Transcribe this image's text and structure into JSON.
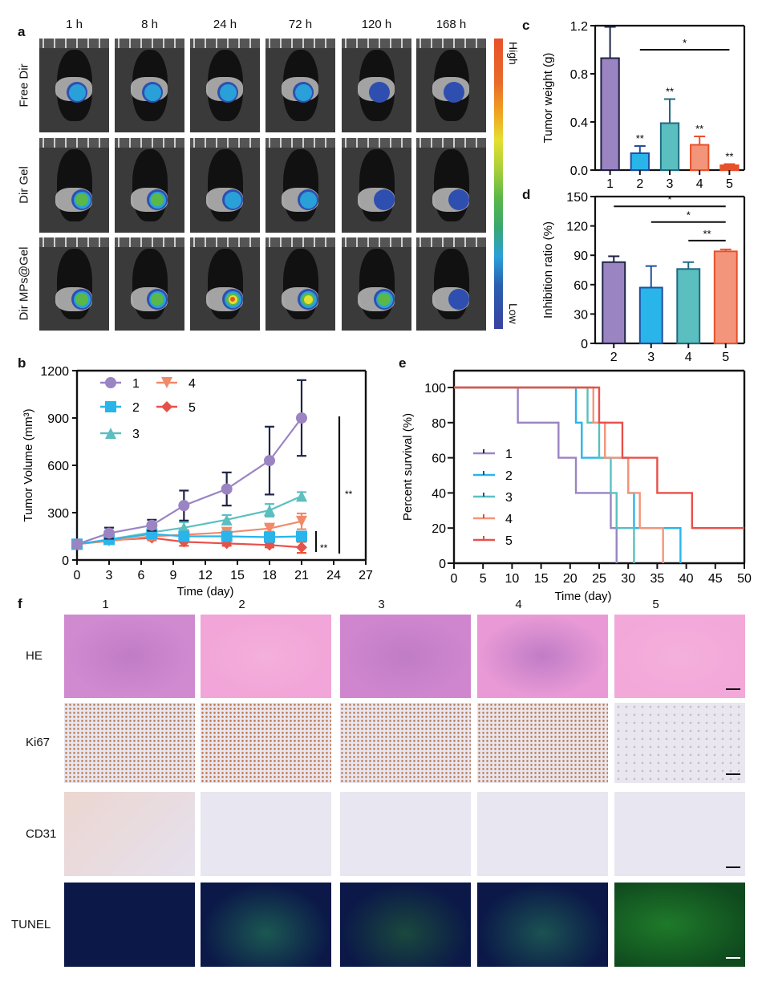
{
  "panel_labels": {
    "a": "a",
    "b": "b",
    "c": "c",
    "d": "d",
    "e": "e",
    "f": "f"
  },
  "panel_a": {
    "time_points": [
      "1 h",
      "8 h",
      "24 h",
      "72 h",
      "120 h",
      "168 h"
    ],
    "groups": [
      "Free Dir",
      "Dir Gel",
      "Dir MPs@Gel"
    ],
    "colorbar": {
      "high_label": "High",
      "low_label": "Low",
      "colors": [
        "#e8512a",
        "#f0a020",
        "#e4e030",
        "#59b848",
        "#2aa0d8",
        "#3a40a0"
      ]
    },
    "signal_intensity": [
      [
        0.45,
        0.45,
        0.4,
        0.3,
        0.08,
        0.08
      ],
      [
        0.55,
        0.5,
        0.45,
        0.45,
        0.25,
        0.15
      ],
      [
        0.55,
        0.55,
        0.95,
        0.8,
        0.55,
        0.25
      ]
    ]
  },
  "chart_data": [
    {
      "id": "b",
      "type": "line",
      "title": "",
      "xlabel": "Time (day)",
      "ylabel": "Tumor Volume (mm³)",
      "xlim": [
        0,
        27
      ],
      "ylim": [
        0,
        1200
      ],
      "xticks": [
        0,
        3,
        6,
        9,
        12,
        15,
        18,
        21,
        24,
        27
      ],
      "yticks": [
        0,
        300,
        600,
        900,
        1200
      ],
      "x": [
        0,
        3,
        7,
        10,
        14,
        18,
        21
      ],
      "series": [
        {
          "name": "1",
          "color": "#9b84c2",
          "marker": "circle",
          "values": [
            100,
            170,
            220,
            345,
            450,
            630,
            900
          ],
          "err": [
            100,
            205,
            255,
            440,
            555,
            845,
            1140
          ]
        },
        {
          "name": "2",
          "color": "#29b5ea",
          "marker": "square",
          "values": [
            100,
            130,
            165,
            150,
            150,
            145,
            150
          ],
          "err": [
            100,
            150,
            185,
            170,
            170,
            165,
            170
          ]
        },
        {
          "name": "3",
          "color": "#5bbfc0",
          "marker": "triangle-up",
          "values": [
            100,
            130,
            175,
            205,
            255,
            315,
            405
          ],
          "err": [
            100,
            150,
            195,
            240,
            285,
            355,
            430
          ]
        },
        {
          "name": "4",
          "color": "#f08a6a",
          "marker": "triangle-down",
          "values": [
            100,
            120,
            150,
            160,
            175,
            200,
            245
          ],
          "err": [
            100,
            135,
            170,
            180,
            195,
            220,
            295
          ]
        },
        {
          "name": "5",
          "color": "#e8504a",
          "marker": "diamond",
          "values": [
            100,
            125,
            140,
            115,
            105,
            95,
            80
          ],
          "err": [
            100,
            140,
            155,
            140,
            120,
            110,
            115
          ]
        }
      ],
      "legend": {
        "placement": "top-left",
        "entries": [
          "1",
          "2",
          "3",
          "4",
          "5"
        ]
      },
      "annotations": [
        {
          "text": "**",
          "from": "2",
          "to": "5"
        },
        {
          "text": "**",
          "from": "1",
          "to": "5"
        }
      ]
    },
    {
      "id": "c",
      "type": "bar",
      "xlabel": "",
      "ylabel": "Tumor weight (g)",
      "categories": [
        "1",
        "2",
        "3",
        "4",
        "5"
      ],
      "values": [
        0.93,
        0.14,
        0.39,
        0.21,
        0.04
      ],
      "err": [
        1.19,
        0.2,
        0.59,
        0.28,
        0.05
      ],
      "colors": [
        "#9b84c2",
        "#29b5ea",
        "#5bbfc0",
        "#f3957a",
        "#e8502a"
      ],
      "edge_colors": [
        "#1f2447",
        "#1f4fa0",
        "#1f6a80",
        "#e8502a",
        "#e8502a"
      ],
      "ylim": [
        0,
        1.2
      ],
      "yticks": [
        0.0,
        0.4,
        0.8,
        1.2
      ],
      "ytick_labels": [
        "0.0",
        "0.4",
        "0.8",
        "1.2"
      ],
      "sig_labels": [
        "",
        "**",
        "**",
        "**",
        "**"
      ],
      "brackets": [
        {
          "from": "2",
          "to": "5",
          "text": "*",
          "level": 1.0
        }
      ]
    },
    {
      "id": "d",
      "type": "bar",
      "xlabel": "",
      "ylabel": "Inhibition ratio (%)",
      "categories": [
        "2",
        "3",
        "4",
        "5"
      ],
      "values": [
        83,
        57,
        76,
        94
      ],
      "err": [
        89,
        79,
        83,
        96
      ],
      "colors": [
        "#9b84c2",
        "#29b5ea",
        "#5bbfc0",
        "#f3957a"
      ],
      "edge_colors": [
        "#1f2447",
        "#1f4fa0",
        "#1f6a80",
        "#e8502a"
      ],
      "ylim": [
        0,
        150
      ],
      "yticks": [
        0,
        30,
        60,
        90,
        120,
        150
      ],
      "brackets": [
        {
          "from": "2",
          "to": "5",
          "text": "*",
          "level": 140
        },
        {
          "from": "3",
          "to": "5",
          "text": "*",
          "level": 124
        },
        {
          "from": "4",
          "to": "5",
          "text": "**",
          "level": 105
        }
      ]
    },
    {
      "id": "e",
      "type": "line",
      "subtype": "kaplan-meier",
      "xlabel": "Time (day)",
      "ylabel": "Percent survival (%)",
      "xlim": [
        0,
        50
      ],
      "ylim": [
        0,
        100
      ],
      "xticks": [
        0,
        5,
        10,
        15,
        20,
        25,
        30,
        35,
        40,
        45,
        50
      ],
      "yticks": [
        0,
        20,
        40,
        60,
        80,
        100
      ],
      "series": [
        {
          "name": "1",
          "color": "#9b84c2",
          "steps": [
            [
              0,
              100
            ],
            [
              11,
              80
            ],
            [
              18,
              60
            ],
            [
              21,
              40
            ],
            [
              27,
              20
            ],
            [
              28,
              0
            ]
          ]
        },
        {
          "name": "2",
          "color": "#29b5ea",
          "steps": [
            [
              0,
              100
            ],
            [
              21,
              80
            ],
            [
              22,
              60
            ],
            [
              30,
              40
            ],
            [
              31,
              20
            ],
            [
              39,
              0
            ]
          ]
        },
        {
          "name": "3",
          "color": "#5bbfc0",
          "steps": [
            [
              0,
              100
            ],
            [
              23,
              80
            ],
            [
              25,
              60
            ],
            [
              27,
              40
            ],
            [
              28,
              20
            ],
            [
              31,
              0
            ]
          ]
        },
        {
          "name": "4",
          "color": "#f3957a",
          "steps": [
            [
              0,
              100
            ],
            [
              24,
              80
            ],
            [
              26,
              60
            ],
            [
              29,
              60
            ],
            [
              30,
              40
            ],
            [
              32,
              20
            ],
            [
              36,
              0
            ]
          ]
        },
        {
          "name": "5",
          "color": "#e8504a",
          "steps": [
            [
              0,
              100
            ],
            [
              25,
              80
            ],
            [
              29,
              60
            ],
            [
              35,
              40
            ],
            [
              41,
              20
            ],
            [
              50,
              20
            ]
          ]
        }
      ],
      "legend": {
        "placement": "center-left",
        "entries": [
          "1",
          "2",
          "3",
          "4",
          "5"
        ]
      }
    }
  ],
  "panel_f": {
    "column_labels": [
      "1",
      "2",
      "3",
      "4",
      "5"
    ],
    "row_labels": [
      "HE",
      "Ki67",
      "CD31",
      "TUNEL"
    ]
  }
}
